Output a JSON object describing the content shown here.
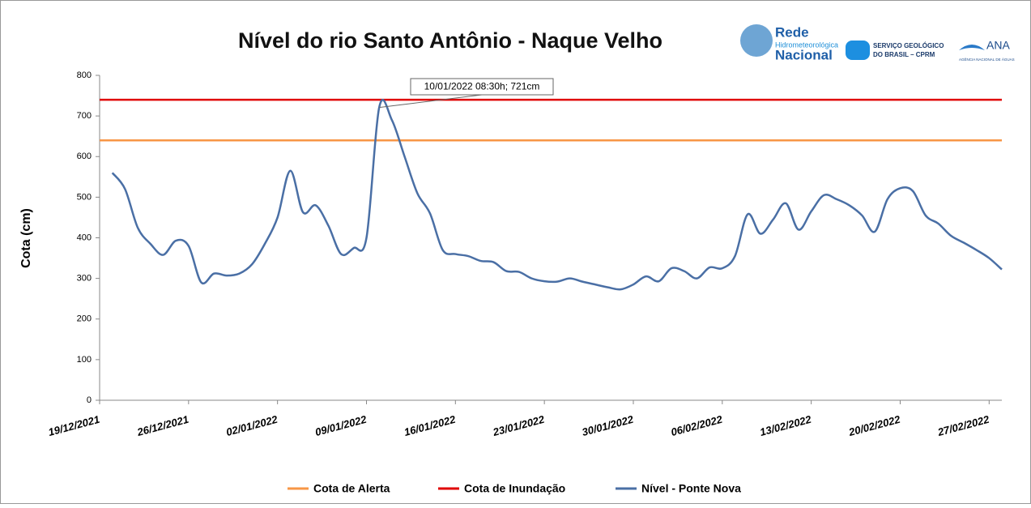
{
  "chart_data": {
    "type": "line",
    "title": "Nível do rio Santo Antônio - Naque Velho",
    "y_label": "Cota (cm)",
    "annotation": "10/01/2022 08:30h; 721cm",
    "logos": {
      "rede": [
        "Rede",
        "Hidrometeorológica",
        "Nacional"
      ],
      "cprm": [
        "SERVIÇO GEOLÓGICO",
        "DO BRASIL – CPRM"
      ],
      "ana": [
        "ANA",
        "AGÊNCIA NACIONAL DE ÁGUAS"
      ]
    },
    "xlim": [
      "2021-12-19",
      "2022-02-28"
    ],
    "xticks": [
      {
        "value": "2021-12-19",
        "label": "19/12/2021"
      },
      {
        "value": "2021-12-26",
        "label": "26/12/2021"
      },
      {
        "value": "2022-01-02",
        "label": "02/01/2022"
      },
      {
        "value": "2022-01-09",
        "label": "09/01/2022"
      },
      {
        "value": "2022-01-16",
        "label": "16/01/2022"
      },
      {
        "value": "2022-01-23",
        "label": "23/01/2022"
      },
      {
        "value": "2022-01-30",
        "label": "30/01/2022"
      },
      {
        "value": "2022-02-06",
        "label": "06/02/2022"
      },
      {
        "value": "2022-02-13",
        "label": "13/02/2022"
      },
      {
        "value": "2022-02-20",
        "label": "20/02/2022"
      },
      {
        "value": "2022-02-27",
        "label": "27/02/2022"
      }
    ],
    "ylim": [
      0,
      800
    ],
    "yticks": [
      0,
      100,
      200,
      300,
      400,
      500,
      600,
      700,
      800
    ],
    "x": [
      "2021-12-20",
      "2021-12-21",
      "2021-12-22",
      "2021-12-23",
      "2021-12-24",
      "2021-12-25",
      "2021-12-26",
      "2021-12-27",
      "2021-12-28",
      "2021-12-29",
      "2021-12-30",
      "2021-12-31",
      "2022-01-01",
      "2022-01-02",
      "2022-01-03",
      "2022-01-04",
      "2022-01-05",
      "2022-01-06",
      "2022-01-07",
      "2022-01-08",
      "2022-01-09",
      "2022-01-10",
      "2022-01-11",
      "2022-01-12",
      "2022-01-13",
      "2022-01-14",
      "2022-01-15",
      "2022-01-16",
      "2022-01-17",
      "2022-01-18",
      "2022-01-19",
      "2022-01-20",
      "2022-01-21",
      "2022-01-22",
      "2022-01-23",
      "2022-01-24",
      "2022-01-25",
      "2022-01-26",
      "2022-01-27",
      "2022-01-28",
      "2022-01-29",
      "2022-01-30",
      "2022-01-31",
      "2022-02-01",
      "2022-02-02",
      "2022-02-03",
      "2022-02-04",
      "2022-02-05",
      "2022-02-06",
      "2022-02-07",
      "2022-02-08",
      "2022-02-09",
      "2022-02-10",
      "2022-02-11",
      "2022-02-12",
      "2022-02-13",
      "2022-02-14",
      "2022-02-15",
      "2022-02-16",
      "2022-02-17",
      "2022-02-18",
      "2022-02-19",
      "2022-02-20",
      "2022-02-21",
      "2022-02-22",
      "2022-02-23",
      "2022-02-24",
      "2022-02-25",
      "2022-02-26",
      "2022-02-27",
      "2022-02-28"
    ],
    "series": [
      {
        "name": "Cota de Alerta",
        "color": "#f79646",
        "value": 640
      },
      {
        "name": "Cota de Inundação",
        "color": "#e00000",
        "value": 740
      },
      {
        "name": "Nível - Ponte Nova",
        "color": "#4a6fa5",
        "values": [
          560,
          520,
          425,
          385,
          358,
          393,
          380,
          290,
          312,
          307,
          312,
          335,
          385,
          450,
          565,
          463,
          480,
          430,
          360,
          375,
          400,
          721,
          690,
          600,
          510,
          460,
          370,
          360,
          355,
          343,
          340,
          318,
          316,
          300,
          293,
          292,
          300,
          292,
          285,
          278,
          273,
          285,
          305,
          293,
          325,
          318,
          300,
          327,
          325,
          355,
          458,
          410,
          445,
          485,
          420,
          465,
          505,
          495,
          480,
          455,
          415,
          495,
          522,
          515,
          455,
          435,
          405,
          388,
          370,
          350,
          322
        ]
      }
    ]
  }
}
